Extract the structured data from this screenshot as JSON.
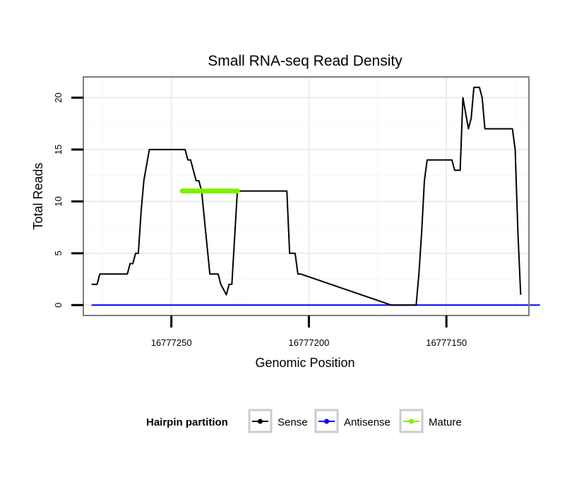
{
  "chart_data": {
    "type": "line",
    "title": "Small RNA-seq Read Density",
    "xlabel": "Genomic Position",
    "ylabel": "Total Reads",
    "x_reversed": true,
    "xlim": [
      16777282,
      16777120
    ],
    "ylim": [
      -1,
      22
    ],
    "xticks": [
      16777250,
      16777200,
      16777150
    ],
    "yticks": [
      0,
      5,
      10,
      15,
      20
    ],
    "grid": true,
    "legend": {
      "title": "Hairpin partition",
      "position": "bottom",
      "entries": [
        "Sense",
        "Antisense",
        "Mature"
      ]
    },
    "series": [
      {
        "name": "Sense",
        "color": "#000000",
        "x": [
          16777279,
          16777277,
          16777276,
          16777266,
          16777265,
          16777264,
          16777263,
          16777262,
          16777261,
          16777260,
          16777258,
          16777257,
          16777256,
          16777246,
          16777245,
          16777244,
          16777243,
          16777242,
          16777241,
          16777240,
          16777239,
          16777236,
          16777233,
          16777232,
          16777230,
          16777229,
          16777228,
          16777226,
          16777224,
          16777223,
          16777222,
          16777221,
          16777219,
          16777218,
          16777217,
          16777216,
          16777215,
          16777214,
          16777212,
          16777211,
          16777208,
          16777207,
          16777206,
          16777205,
          16777204,
          16777203,
          16777170,
          16777168,
          16777167,
          16777166,
          16777165,
          16777164,
          16777163,
          16777162,
          16777161,
          16777160,
          16777159,
          16777158,
          16777157,
          16777156,
          16777155,
          16777154,
          16777153,
          16777152,
          16777151,
          16777148,
          16777147,
          16777145,
          16777144,
          16777142,
          16777141,
          16777140,
          16777139,
          16777138,
          16777137,
          16777136,
          16777135,
          16777134,
          16777133,
          16777132,
          16777131,
          16777130,
          16777129,
          16777128,
          16777127,
          16777126,
          16777125,
          16777124,
          16777123
        ],
        "y": [
          2,
          2,
          3,
          3,
          4,
          4,
          5,
          5,
          9,
          12,
          15,
          15,
          15,
          15,
          15,
          14,
          14,
          13,
          12,
          12,
          11,
          3,
          3,
          2,
          1,
          2,
          2,
          11,
          11,
          11,
          11,
          11,
          11,
          11,
          11,
          11,
          11,
          11,
          11,
          11,
          11,
          5,
          5,
          5,
          3,
          3,
          0,
          0,
          0,
          0,
          0,
          0,
          0,
          0,
          0,
          3,
          7,
          12,
          14,
          14,
          14,
          14,
          14,
          14,
          14,
          14,
          13,
          13,
          20,
          17,
          18,
          21,
          21,
          21,
          20,
          17,
          17,
          17,
          17,
          17,
          17,
          17,
          17,
          17,
          17,
          17,
          15,
          7,
          1
        ]
      },
      {
        "name": "Antisense",
        "color": "#0000ff",
        "x": [
          16777279,
          16777116
        ],
        "y": [
          0,
          0
        ]
      },
      {
        "name": "Mature",
        "color": "#7ff000",
        "x": [
          16777246,
          16777226
        ],
        "y": [
          11,
          11
        ]
      }
    ]
  }
}
